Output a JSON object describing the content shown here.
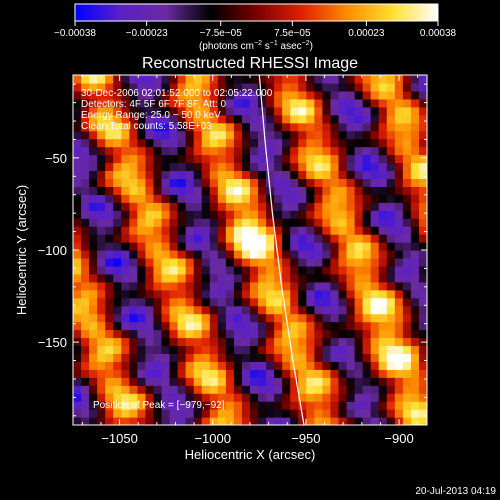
{
  "chart_data": {
    "type": "heatmap",
    "title": "Reconstructed RHESSI Image",
    "xlabel": "Heliocentric X (arcsec)",
    "ylabel": "Heliocentric Y (arcsec)",
    "xlim": [
      -1075,
      -885
    ],
    "ylim": [
      -195,
      -5
    ],
    "x_ticks": [
      -1050,
      -1000,
      -950,
      -900
    ],
    "x_tick_labels": [
      "−1050",
      "−1000",
      "−950",
      "−900"
    ],
    "y_ticks": [
      -50,
      -100,
      -150
    ],
    "y_tick_labels": [
      "−50",
      "−100",
      "−150"
    ],
    "colorbar": {
      "range": [
        -0.00038,
        0.00038
      ],
      "ticks": [
        -0.00038,
        -0.00023,
        -7.5e-05,
        7.5e-05,
        0.00023,
        0.00038
      ],
      "tick_labels": [
        "−0.00038",
        "−0.00023",
        "−7.5e−05",
        "7.5e−05",
        "0.00023",
        "0.00038"
      ],
      "units_parts": [
        "(photons cm",
        "−2",
        " s",
        "−1",
        " asec",
        "−2",
        ")"
      ],
      "colors": [
        "#0000ff",
        "#5a1fc8",
        "#6a2aa0",
        "#000000",
        "#7a0000",
        "#e02000",
        "#ff8c00",
        "#ffe030",
        "#ffffff"
      ]
    },
    "annotations": [
      "30-Dec-2006 02:01:52.000 to 02:05:22.000",
      "Detectors: 4F 5F 6F 7F 8F, Att: 0",
      "Energy Range: 25.0 − 50.0 keV",
      "Clean     Total counts: 5.58E+03"
    ],
    "peak_label": "Position of Peak = [−979,−92]",
    "peak": {
      "x": -979,
      "y": -92
    },
    "limb_points": [
      [
        -975,
        -5
      ],
      [
        -972,
        -40
      ],
      [
        -968,
        -80
      ],
      [
        -963,
        -120
      ],
      [
        -957,
        -160
      ],
      [
        -951,
        -195
      ]
    ],
    "grid": false
  },
  "footer": {
    "timestamp": "20-Jul-2013 04:19"
  }
}
